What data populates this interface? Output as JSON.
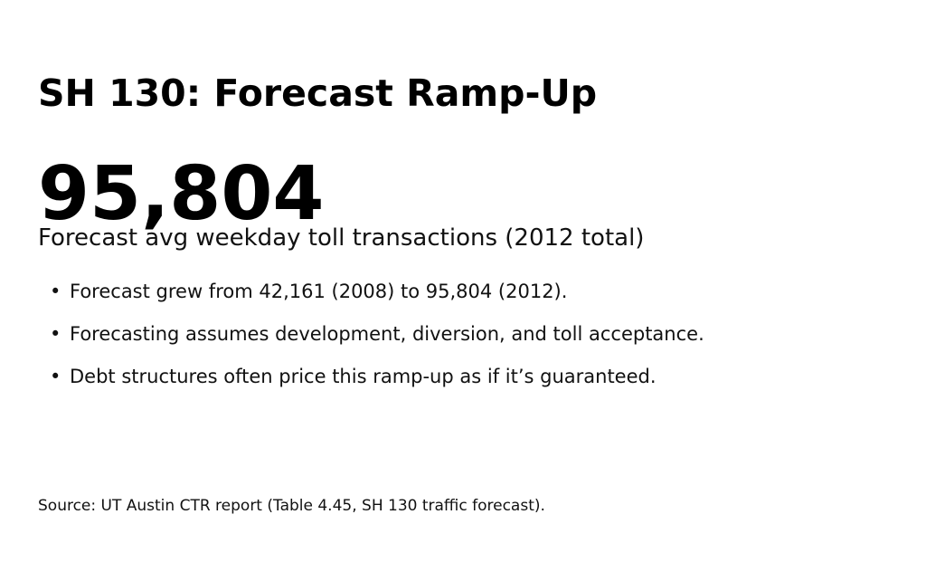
{
  "slide": {
    "title": "SH 130: Forecast Ramp-Up",
    "stat": {
      "value": "95,804",
      "label": "Forecast avg weekday toll transactions (2012 total)"
    },
    "bullets": [
      "Forecast grew from 42,161 (2008) to 95,804 (2012).",
      "Forecasting assumes development, diversion, and toll acceptance.",
      "Debt structures often price this ramp-up as if it’s guaranteed."
    ],
    "source": "Source: UT Austin CTR report (Table 4.45, SH 130 traffic forecast).",
    "colors": {
      "background": "#ffffff",
      "heading_text": "#000000",
      "body_text": "#111111"
    }
  }
}
